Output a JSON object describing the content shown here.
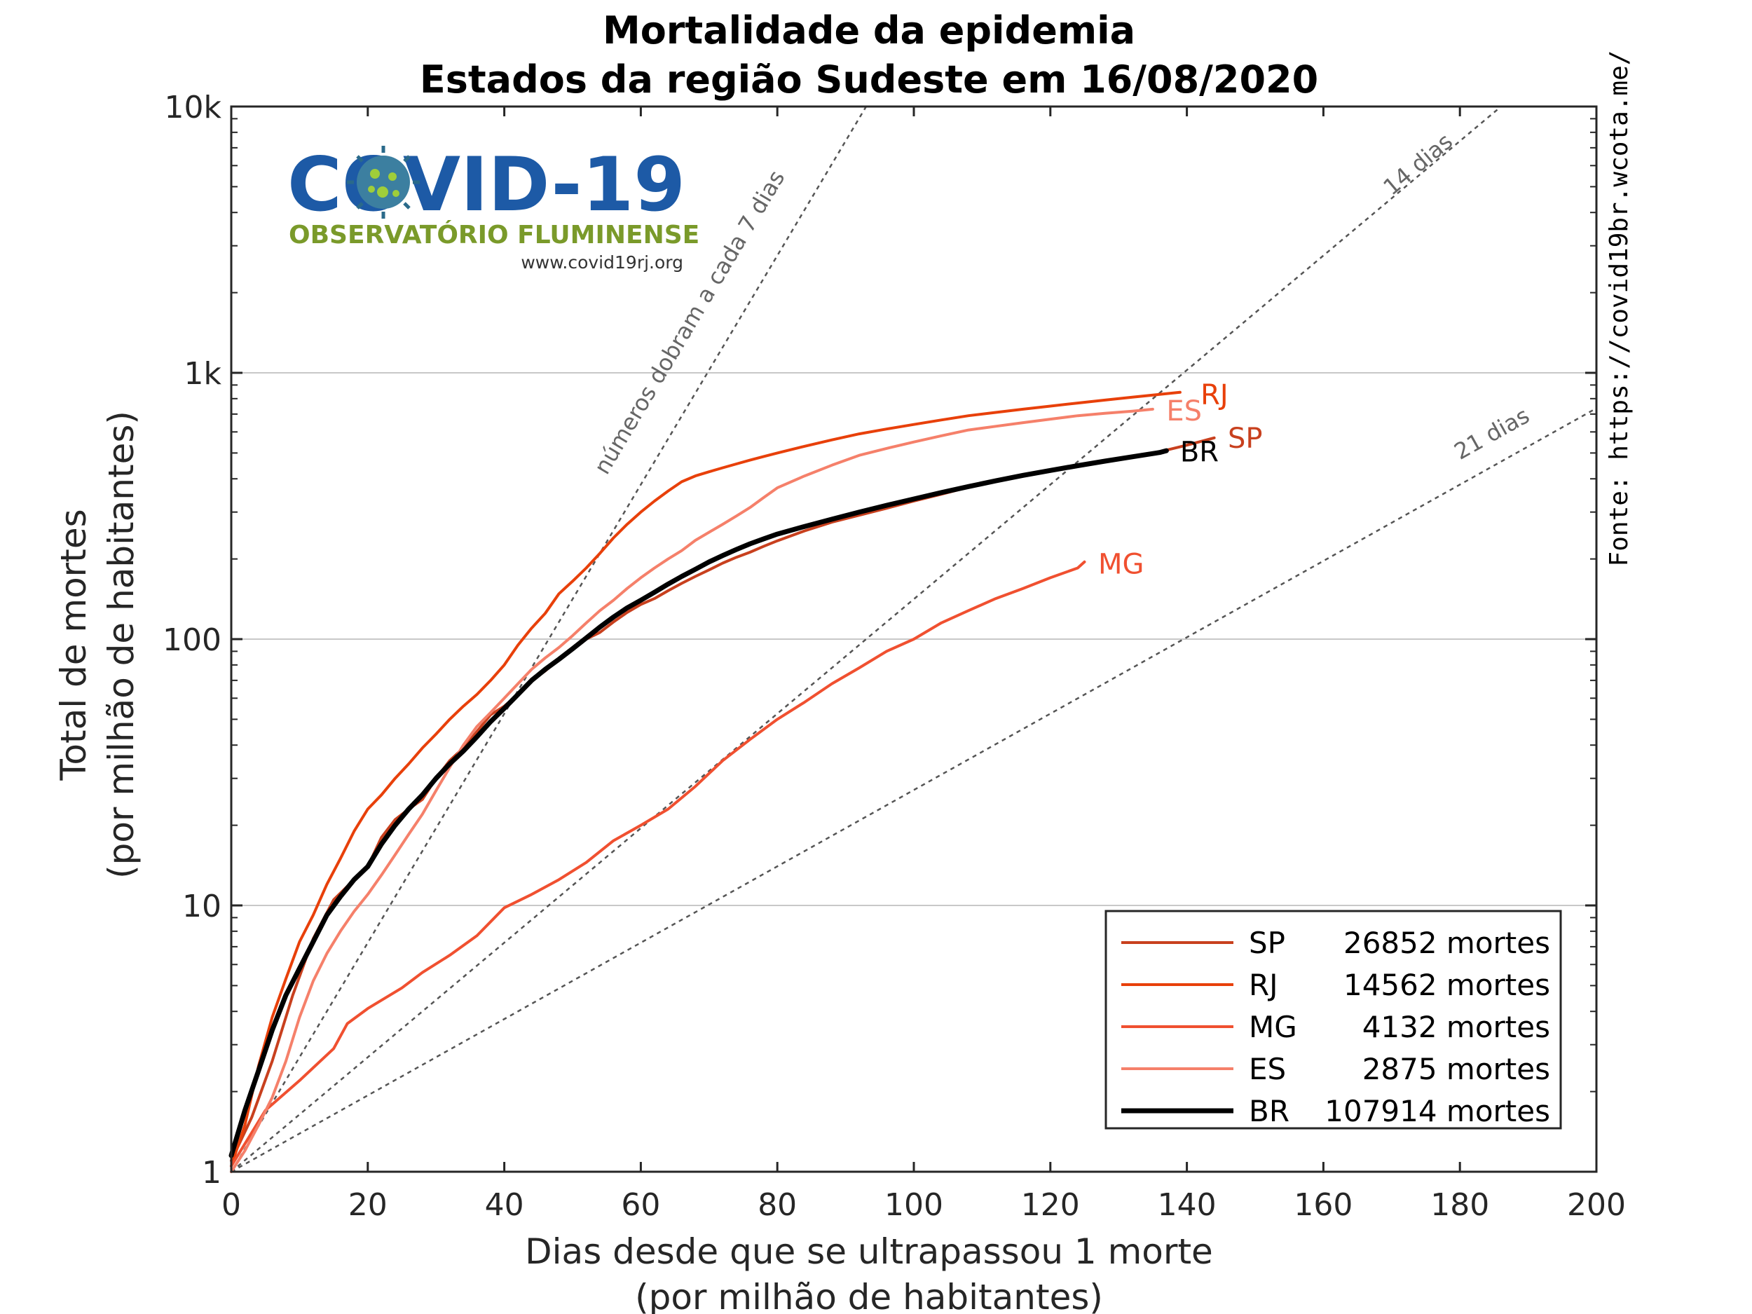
{
  "chart_data": {
    "type": "line",
    "title": "Mortalidade da epidemia",
    "subtitle": "Estados da região Sudeste em 16/08/2020",
    "xlabel": "Dias desde que se ultrapassou 1 morte",
    "xlabel_line2": "(por milhão de habitantes)",
    "ylabel": "Total de mortes",
    "ylabel_line2": "(por milhão de habitantes)",
    "xlim": [
      0,
      200
    ],
    "ylim": [
      1,
      10000
    ],
    "yscale": "log",
    "x_ticks": [
      0,
      20,
      40,
      60,
      80,
      100,
      120,
      140,
      160,
      180,
      200
    ],
    "y_ticks": [
      1,
      10,
      100,
      1000,
      10000
    ],
    "y_tick_labels": [
      "1",
      "10",
      "100",
      "1k",
      "10k"
    ],
    "grid": "horizontal at major ticks",
    "legend_position": "bottom-right",
    "source_text": "Fonte: https://covid19br.wcota.me/",
    "logo": {
      "text": "COVID-19",
      "subtitle": "OBSERVATÓRIO FLUMINENSE",
      "url": "www.covid19rj.org"
    },
    "guides": [
      {
        "label": "números dobram a cada 7 dias",
        "doubling_days": 7
      },
      {
        "label": "14 dias",
        "doubling_days": 14
      },
      {
        "label": "21 dias",
        "doubling_days": 21
      }
    ],
    "series": [
      {
        "name": "SP",
        "legend": "26852 mortes",
        "color": "#c8401e",
        "width": 4,
        "points": [
          [
            0,
            1.1
          ],
          [
            3,
            1.6
          ],
          [
            6,
            2.6
          ],
          [
            9,
            4.6
          ],
          [
            12,
            7.5
          ],
          [
            15,
            10.5
          ],
          [
            18,
            12.5
          ],
          [
            20,
            14
          ],
          [
            22,
            18
          ],
          [
            24,
            21
          ],
          [
            26,
            23
          ],
          [
            28,
            25
          ],
          [
            30,
            30
          ],
          [
            32,
            35
          ],
          [
            34,
            39
          ],
          [
            36,
            45
          ],
          [
            38,
            52
          ],
          [
            40,
            56
          ],
          [
            42,
            62
          ],
          [
            44,
            70
          ],
          [
            46,
            76
          ],
          [
            48,
            84
          ],
          [
            50,
            92
          ],
          [
            52,
            100
          ],
          [
            54,
            106
          ],
          [
            56,
            116
          ],
          [
            58,
            126
          ],
          [
            60,
            135
          ],
          [
            62,
            142
          ],
          [
            64,
            152
          ],
          [
            66,
            162
          ],
          [
            68,
            172
          ],
          [
            70,
            182
          ],
          [
            72,
            193
          ],
          [
            74,
            203
          ],
          [
            76,
            212
          ],
          [
            78,
            223
          ],
          [
            80,
            234
          ],
          [
            84,
            255
          ],
          [
            88,
            275
          ],
          [
            92,
            292
          ],
          [
            96,
            310
          ],
          [
            100,
            330
          ],
          [
            104,
            350
          ],
          [
            108,
            372
          ],
          [
            112,
            392
          ],
          [
            116,
            410
          ],
          [
            120,
            428
          ],
          [
            124,
            445
          ],
          [
            128,
            463
          ],
          [
            132,
            482
          ],
          [
            136,
            505
          ],
          [
            140,
            535
          ],
          [
            144,
            570
          ]
        ]
      },
      {
        "name": "RJ",
        "legend": "14562 mortes",
        "color": "#e8400a",
        "width": 4,
        "points": [
          [
            0,
            1.05
          ],
          [
            2,
            1.5
          ],
          [
            4,
            2.5
          ],
          [
            6,
            3.8
          ],
          [
            8,
            5.3
          ],
          [
            10,
            7.3
          ],
          [
            12,
            9.2
          ],
          [
            14,
            12
          ],
          [
            16,
            15
          ],
          [
            18,
            19
          ],
          [
            20,
            23
          ],
          [
            22,
            26
          ],
          [
            24,
            30
          ],
          [
            26,
            34
          ],
          [
            28,
            39
          ],
          [
            30,
            44
          ],
          [
            32,
            50
          ],
          [
            34,
            56
          ],
          [
            36,
            62
          ],
          [
            38,
            70
          ],
          [
            40,
            80
          ],
          [
            42,
            95
          ],
          [
            44,
            110
          ],
          [
            46,
            125
          ],
          [
            48,
            148
          ],
          [
            50,
            165
          ],
          [
            52,
            185
          ],
          [
            54,
            210
          ],
          [
            56,
            240
          ],
          [
            58,
            270
          ],
          [
            60,
            300
          ],
          [
            62,
            330
          ],
          [
            64,
            360
          ],
          [
            66,
            390
          ],
          [
            68,
            410
          ],
          [
            70,
            425
          ],
          [
            72,
            440
          ],
          [
            74,
            455
          ],
          [
            76,
            470
          ],
          [
            78,
            485
          ],
          [
            80,
            500
          ],
          [
            84,
            530
          ],
          [
            88,
            560
          ],
          [
            92,
            590
          ],
          [
            96,
            615
          ],
          [
            100,
            640
          ],
          [
            104,
            665
          ],
          [
            108,
            690
          ],
          [
            112,
            710
          ],
          [
            116,
            730
          ],
          [
            120,
            750
          ],
          [
            124,
            770
          ],
          [
            128,
            790
          ],
          [
            132,
            810
          ],
          [
            136,
            830
          ],
          [
            139,
            845
          ]
        ]
      },
      {
        "name": "MG",
        "legend": "4132 mortes",
        "color": "#f05030",
        "width": 4,
        "points": [
          [
            0,
            1.05
          ],
          [
            5,
            1.7
          ],
          [
            10,
            2.2
          ],
          [
            15,
            2.9
          ],
          [
            17,
            3.6
          ],
          [
            20,
            4.1
          ],
          [
            25,
            4.9
          ],
          [
            28,
            5.6
          ],
          [
            32,
            6.5
          ],
          [
            36,
            7.7
          ],
          [
            40,
            9.8
          ],
          [
            44,
            11
          ],
          [
            48,
            12.5
          ],
          [
            52,
            14.5
          ],
          [
            56,
            17.5
          ],
          [
            60,
            20
          ],
          [
            64,
            23
          ],
          [
            68,
            28
          ],
          [
            72,
            35
          ],
          [
            76,
            42
          ],
          [
            80,
            50
          ],
          [
            84,
            58
          ],
          [
            88,
            68
          ],
          [
            92,
            78
          ],
          [
            96,
            90
          ],
          [
            100,
            100
          ],
          [
            104,
            115
          ],
          [
            108,
            128
          ],
          [
            112,
            142
          ],
          [
            116,
            155
          ],
          [
            120,
            170
          ],
          [
            124,
            185
          ],
          [
            125,
            195
          ]
        ]
      },
      {
        "name": "ES",
        "legend": "2875 mortes",
        "color": "#f5806a",
        "width": 4,
        "points": [
          [
            0,
            1.0
          ],
          [
            2,
            1.2
          ],
          [
            4,
            1.5
          ],
          [
            6,
            1.9
          ],
          [
            8,
            2.6
          ],
          [
            10,
            3.8
          ],
          [
            12,
            5.2
          ],
          [
            14,
            6.6
          ],
          [
            16,
            8
          ],
          [
            18,
            9.5
          ],
          [
            20,
            11
          ],
          [
            22,
            13
          ],
          [
            24,
            15.5
          ],
          [
            26,
            18.5
          ],
          [
            28,
            22
          ],
          [
            30,
            27
          ],
          [
            32,
            33
          ],
          [
            34,
            40
          ],
          [
            36,
            47
          ],
          [
            38,
            53
          ],
          [
            40,
            60
          ],
          [
            42,
            68
          ],
          [
            44,
            77
          ],
          [
            46,
            85
          ],
          [
            48,
            93
          ],
          [
            50,
            103
          ],
          [
            52,
            115
          ],
          [
            54,
            128
          ],
          [
            56,
            140
          ],
          [
            58,
            155
          ],
          [
            60,
            170
          ],
          [
            62,
            185
          ],
          [
            64,
            200
          ],
          [
            66,
            215
          ],
          [
            68,
            235
          ],
          [
            70,
            252
          ],
          [
            72,
            270
          ],
          [
            74,
            290
          ],
          [
            76,
            312
          ],
          [
            78,
            340
          ],
          [
            80,
            370
          ],
          [
            84,
            410
          ],
          [
            88,
            450
          ],
          [
            92,
            490
          ],
          [
            96,
            520
          ],
          [
            100,
            550
          ],
          [
            104,
            580
          ],
          [
            108,
            610
          ],
          [
            112,
            630
          ],
          [
            116,
            650
          ],
          [
            120,
            670
          ],
          [
            124,
            690
          ],
          [
            128,
            705
          ],
          [
            132,
            718
          ],
          [
            135,
            730
          ]
        ]
      },
      {
        "name": "BR",
        "legend": "107914 mortes",
        "color": "#000000",
        "width": 7,
        "points": [
          [
            0,
            1.15
          ],
          [
            2,
            1.7
          ],
          [
            4,
            2.4
          ],
          [
            6,
            3.4
          ],
          [
            8,
            4.6
          ],
          [
            10,
            5.8
          ],
          [
            12,
            7.3
          ],
          [
            14,
            9.2
          ],
          [
            16,
            10.8
          ],
          [
            18,
            12.5
          ],
          [
            20,
            14
          ],
          [
            22,
            17
          ],
          [
            24,
            20
          ],
          [
            26,
            23
          ],
          [
            28,
            26
          ],
          [
            30,
            30
          ],
          [
            32,
            34
          ],
          [
            34,
            38
          ],
          [
            36,
            43
          ],
          [
            38,
            49
          ],
          [
            40,
            55
          ],
          [
            42,
            62
          ],
          [
            44,
            70
          ],
          [
            46,
            77
          ],
          [
            48,
            84
          ],
          [
            50,
            92
          ],
          [
            52,
            101
          ],
          [
            54,
            111
          ],
          [
            56,
            121
          ],
          [
            58,
            131
          ],
          [
            60,
            140
          ],
          [
            62,
            150
          ],
          [
            64,
            161
          ],
          [
            66,
            172
          ],
          [
            68,
            183
          ],
          [
            70,
            195
          ],
          [
            72,
            206
          ],
          [
            74,
            217
          ],
          [
            76,
            228
          ],
          [
            78,
            238
          ],
          [
            80,
            248
          ],
          [
            84,
            265
          ],
          [
            88,
            282
          ],
          [
            92,
            300
          ],
          [
            96,
            318
          ],
          [
            100,
            336
          ],
          [
            104,
            355
          ],
          [
            108,
            374
          ],
          [
            112,
            393
          ],
          [
            116,
            412
          ],
          [
            120,
            430
          ],
          [
            124,
            448
          ],
          [
            128,
            466
          ],
          [
            132,
            484
          ],
          [
            136,
            502
          ],
          [
            137,
            510
          ]
        ]
      }
    ],
    "end_labels": [
      {
        "text": "RJ",
        "x": 142,
        "y": 830,
        "color": "#e8400a"
      },
      {
        "text": "ES",
        "x": 137,
        "y": 720,
        "color": "#f5806a"
      },
      {
        "text": "SP",
        "x": 146,
        "y": 570,
        "color": "#c8401e"
      },
      {
        "text": "BR",
        "x": 139,
        "y": 505,
        "color": "#000000"
      },
      {
        "text": "MG",
        "x": 127,
        "y": 192,
        "color": "#f05030"
      }
    ]
  }
}
